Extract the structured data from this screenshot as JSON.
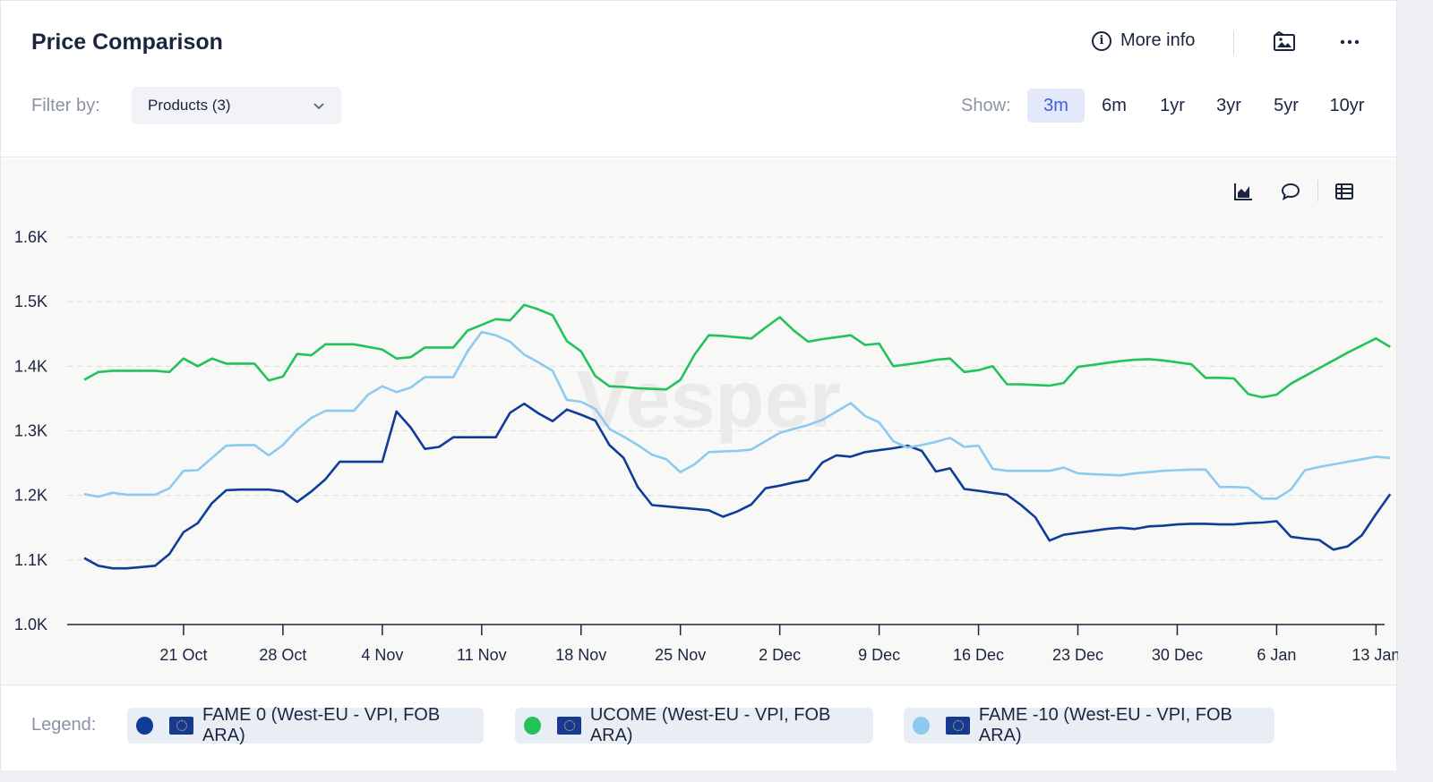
{
  "header": {
    "title": "Price Comparison",
    "more_info_label": "More info",
    "filter_label": "Filter by:",
    "filter_value": "Products (3)",
    "show_label": "Show:",
    "ranges": [
      "3m",
      "6m",
      "1yr",
      "3yr",
      "5yr",
      "10yr"
    ],
    "active_range": "3m"
  },
  "icons": {
    "info": "info-icon",
    "image": "image-icon",
    "more": "more-dots-icon",
    "chevron": "chevron-down-icon",
    "chart_toggle": "area-chart-icon",
    "comment": "comment-icon",
    "table": "table-icon"
  },
  "legend": {
    "label": "Legend:",
    "items": [
      {
        "name": "FAME 0 (West-EU - VPI, FOB ARA)",
        "color": "#0e3d99"
      },
      {
        "name": "UCOME (West-EU - VPI, FOB ARA)",
        "color": "#22c35a"
      },
      {
        "name": "FAME -10 (West-EU - VPI, FOB ARA)",
        "color": "#8ccbef"
      }
    ]
  },
  "chart_data": {
    "type": "line",
    "x_start": "2024-10-14",
    "xticks": [
      "21 Oct",
      "28 Oct",
      "4 Nov",
      "11 Nov",
      "18 Nov",
      "25 Nov",
      "2 Dec",
      "9 Dec",
      "16 Dec",
      "23 Dec",
      "30 Dec",
      "6 Jan",
      "13 Jan"
    ],
    "ylim": [
      1000,
      1600
    ],
    "yticks": [
      "1.0K",
      "1.1K",
      "1.2K",
      "1.3K",
      "1.4K",
      "1.5K",
      "1.6K"
    ],
    "grid": true,
    "watermark": "Vesper",
    "series": [
      {
        "name": "FAME 0 (West-EU - VPI, FOB ARA)",
        "color": "#0e3d99",
        "x": [
          0,
          1,
          2,
          3,
          4,
          5,
          6,
          7,
          8,
          9,
          10,
          11,
          12,
          13,
          14,
          15,
          16,
          17,
          18,
          19,
          20,
          21,
          22,
          23,
          24,
          25,
          26,
          27,
          28,
          29,
          30,
          31,
          32,
          33,
          34,
          35,
          36,
          37,
          38,
          39,
          40,
          41,
          42,
          43,
          44,
          45,
          46,
          47,
          48,
          49,
          50,
          51,
          52,
          53,
          54,
          55,
          56,
          57,
          58,
          59,
          60,
          61,
          62,
          63,
          64,
          65,
          66,
          67,
          68,
          69,
          70,
          71,
          72,
          73,
          74,
          75,
          76,
          77,
          78,
          79,
          80,
          81,
          82,
          83,
          84,
          85,
          86,
          87,
          88,
          89,
          90,
          91,
          92
        ],
        "values": [
          1103,
          1091,
          1087,
          1087,
          1089,
          1091,
          1109,
          1143,
          1157,
          1188,
          1208,
          1209,
          1209,
          1209,
          1206,
          1190,
          1206,
          1225,
          1252,
          1252,
          1252,
          1252,
          1330,
          1305,
          1272,
          1275,
          1290,
          1290,
          1290,
          1290,
          1328,
          1342,
          1327,
          1315,
          1333,
          1325,
          1316,
          1278,
          1258,
          1213,
          1185,
          1183,
          1181,
          1179,
          1177,
          1167,
          1175,
          1186,
          1211,
          1215,
          1220,
          1224,
          1251,
          1262,
          1260,
          1267,
          1270,
          1273,
          1277,
          1269,
          1237,
          1242,
          1210,
          1207,
          1204,
          1201,
          1185,
          1166,
          1130,
          1139,
          1142,
          1145,
          1148,
          1150,
          1148,
          1152,
          1153,
          1155,
          1156,
          1156,
          1155,
          1155,
          1157,
          1158,
          1160,
          1136,
          1133,
          1131,
          1116,
          1121,
          1138,
          1171,
          1202
        ]
      },
      {
        "name": "UCOME (West-EU - VPI, FOB ARA)",
        "color": "#22c35a",
        "x": [
          0,
          1,
          2,
          3,
          4,
          5,
          6,
          7,
          8,
          9,
          10,
          11,
          12,
          13,
          14,
          15,
          16,
          17,
          18,
          19,
          20,
          21,
          22,
          23,
          24,
          25,
          26,
          27,
          28,
          29,
          30,
          31,
          32,
          33,
          34,
          35,
          36,
          37,
          38,
          39,
          40,
          41,
          42,
          43,
          44,
          45,
          46,
          47,
          48,
          49,
          50,
          51,
          52,
          53,
          54,
          55,
          56,
          57,
          58,
          59,
          60,
          61,
          62,
          63,
          64,
          65,
          66,
          67,
          68,
          69,
          70,
          71,
          72,
          73,
          74,
          75,
          76,
          77,
          78,
          79,
          80,
          81,
          82,
          83,
          84,
          85,
          86,
          87,
          88,
          89,
          90,
          91,
          92
        ],
        "values": [
          1379,
          1391,
          1393,
          1393,
          1393,
          1393,
          1391,
          1412,
          1400,
          1412,
          1404,
          1404,
          1404,
          1378,
          1384,
          1419,
          1417,
          1434,
          1434,
          1434,
          1430,
          1426,
          1412,
          1414,
          1429,
          1429,
          1429,
          1455,
          1464,
          1473,
          1471,
          1495,
          1488,
          1479,
          1439,
          1423,
          1385,
          1369,
          1368,
          1366,
          1365,
          1364,
          1379,
          1418,
          1448,
          1447,
          1445,
          1443,
          1460,
          1476,
          1455,
          1438,
          1442,
          1445,
          1448,
          1433,
          1435,
          1400,
          1403,
          1406,
          1410,
          1412,
          1391,
          1394,
          1400,
          1372,
          1372,
          1371,
          1370,
          1374,
          1399,
          1402,
          1405,
          1408,
          1410,
          1411,
          1409,
          1406,
          1403,
          1382,
          1382,
          1381,
          1357,
          1352,
          1356,
          1373,
          1385,
          1397,
          1409,
          1421,
          1432,
          1443,
          1430
        ]
      },
      {
        "name": "FAME -10 (West-EU - VPI, FOB ARA)",
        "color": "#8ccbef",
        "x": [
          0,
          1,
          2,
          3,
          4,
          5,
          6,
          7,
          8,
          9,
          10,
          11,
          12,
          13,
          14,
          15,
          16,
          17,
          18,
          19,
          20,
          21,
          22,
          23,
          24,
          25,
          26,
          27,
          28,
          29,
          30,
          31,
          32,
          33,
          34,
          35,
          36,
          37,
          38,
          39,
          40,
          41,
          42,
          43,
          44,
          45,
          46,
          47,
          48,
          49,
          50,
          51,
          52,
          53,
          54,
          55,
          56,
          57,
          58,
          59,
          60,
          61,
          62,
          63,
          64,
          65,
          66,
          67,
          68,
          69,
          70,
          71,
          72,
          73,
          74,
          75,
          76,
          77,
          78,
          79,
          80,
          81,
          82,
          83,
          84,
          85,
          86,
          87,
          88,
          89,
          90,
          91,
          92
        ],
        "values": [
          1202,
          1198,
          1204,
          1201,
          1201,
          1201,
          1211,
          1238,
          1239,
          1258,
          1277,
          1278,
          1278,
          1262,
          1278,
          1302,
          1320,
          1331,
          1331,
          1331,
          1356,
          1369,
          1360,
          1367,
          1383,
          1383,
          1383,
          1423,
          1453,
          1448,
          1438,
          1418,
          1406,
          1393,
          1348,
          1345,
          1334,
          1303,
          1291,
          1278,
          1263,
          1256,
          1236,
          1248,
          1267,
          1268,
          1269,
          1271,
          1284,
          1297,
          1303,
          1309,
          1317,
          1330,
          1343,
          1323,
          1313,
          1284,
          1274,
          1278,
          1283,
          1289,
          1275,
          1277,
          1241,
          1238,
          1238,
          1238,
          1238,
          1243,
          1234,
          1233,
          1232,
          1231,
          1234,
          1236,
          1238,
          1239,
          1240,
          1240,
          1213,
          1213,
          1212,
          1195,
          1195,
          1209,
          1239,
          1244,
          1248,
          1252,
          1256,
          1260,
          1258
        ]
      }
    ]
  }
}
